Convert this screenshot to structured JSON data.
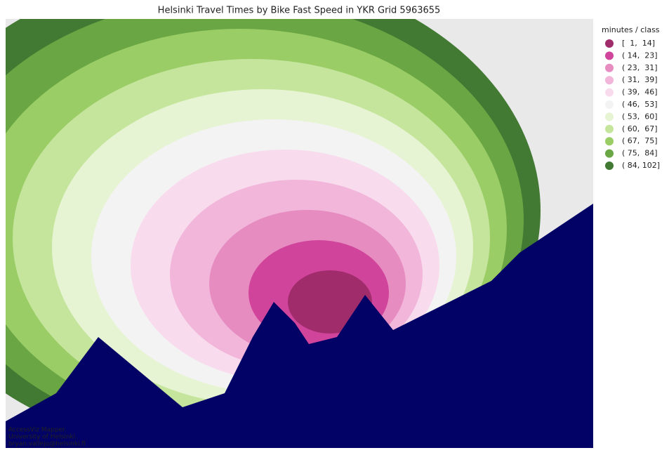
{
  "title": "Helsinki Travel Times by Bike Fast Speed in YKR Grid 5963655",
  "legend": {
    "title": "minutes / class",
    "items": [
      {
        "label": "[  1,  14]",
        "color": "#a02c6c"
      },
      {
        "label": "( 14,  23]",
        "color": "#d1449b"
      },
      {
        "label": "( 23,  31]",
        "color": "#e68cc1"
      },
      {
        "label": "( 31,  39]",
        "color": "#f1b6da"
      },
      {
        "label": "( 39,  46]",
        "color": "#f8dcee"
      },
      {
        "label": "( 46,  53]",
        "color": "#f3f3f3"
      },
      {
        "label": "( 53,  60]",
        "color": "#e6f4d3"
      },
      {
        "label": "( 60,  67]",
        "color": "#c5e59c"
      },
      {
        "label": "( 67,  75]",
        "color": "#9acd66"
      },
      {
        "label": "( 75,  84]",
        "color": "#6aa643"
      },
      {
        "label": "( 84, 102]",
        "color": "#437a33"
      }
    ]
  },
  "attribution": [
    "AccessViz Mapper.",
    "University of Helsinki.",
    "bryan.vallejo@helsinki.fi"
  ]
}
